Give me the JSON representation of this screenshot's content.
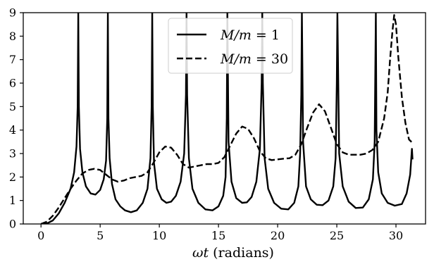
{
  "chart_data": {
    "type": "line",
    "title": "",
    "xlabel": "ωt (radians)",
    "ylabel": "",
    "xlim": [
      -1.5,
      32.5
    ],
    "ylim": [
      0,
      9
    ],
    "xticks": [
      0,
      5,
      10,
      15,
      20,
      25,
      30
    ],
    "yticks": [
      0,
      1,
      2,
      3,
      4,
      5,
      6,
      7,
      8,
      9
    ],
    "grid": false,
    "legend": "top-center",
    "series": [
      {
        "name": "M/m = 1",
        "style": "solid",
        "color": "#000000",
        "x": [
          0,
          0.5,
          1.0,
          1.5,
          2.0,
          2.5,
          2.8,
          3.0,
          3.1,
          3.15,
          3.2,
          3.3,
          3.5,
          3.8,
          4.2,
          4.6,
          5.0,
          5.3,
          5.5,
          5.6,
          5.65,
          5.7,
          5.8,
          6.0,
          6.3,
          6.7,
          7.1,
          7.6,
          8.1,
          8.6,
          9.0,
          9.25,
          9.35,
          9.4,
          9.45,
          9.55,
          9.8,
          10.2,
          10.6,
          11.0,
          11.4,
          11.8,
          12.1,
          12.25,
          12.3,
          12.35,
          12.5,
          12.8,
          13.3,
          13.9,
          14.5,
          15.0,
          15.4,
          15.6,
          15.7,
          15.75,
          15.85,
          16.1,
          16.5,
          17.0,
          17.4,
          17.8,
          18.2,
          18.5,
          18.65,
          18.7,
          18.75,
          18.9,
          19.2,
          19.7,
          20.3,
          20.9,
          21.4,
          21.75,
          21.9,
          22.0,
          22.05,
          22.15,
          22.4,
          22.8,
          23.3,
          23.8,
          24.3,
          24.7,
          24.9,
          25.0,
          25.05,
          25.2,
          25.5,
          26.0,
          26.6,
          27.2,
          27.7,
          28.05,
          28.2,
          28.3,
          28.35,
          28.5,
          28.8,
          29.3,
          29.9,
          30.5,
          30.9,
          31.2,
          31.35,
          31.4
        ],
        "y": [
          0,
          0.02,
          0.15,
          0.45,
          0.9,
          1.5,
          2.2,
          3.3,
          5.0,
          9.0,
          5.0,
          3.2,
          2.2,
          1.6,
          1.3,
          1.25,
          1.45,
          1.9,
          2.7,
          4.5,
          9.0,
          4.5,
          2.8,
          1.7,
          1.05,
          0.75,
          0.58,
          0.5,
          0.58,
          0.9,
          1.5,
          2.8,
          5.0,
          9.0,
          5.0,
          2.6,
          1.5,
          1.05,
          0.9,
          0.95,
          1.2,
          1.8,
          3.0,
          5.5,
          9.0,
          5.5,
          2.8,
          1.5,
          0.9,
          0.62,
          0.58,
          0.75,
          1.2,
          2.0,
          4.5,
          9.0,
          3.5,
          1.8,
          1.1,
          0.9,
          0.92,
          1.15,
          1.8,
          3.2,
          6.0,
          9.0,
          6.0,
          2.8,
          1.5,
          0.9,
          0.65,
          0.62,
          0.9,
          1.6,
          3.0,
          5.5,
          9.0,
          3.5,
          1.6,
          1.05,
          0.82,
          0.8,
          1.0,
          1.6,
          2.8,
          6.0,
          9.0,
          3.0,
          1.6,
          0.95,
          0.68,
          0.7,
          1.05,
          1.9,
          3.5,
          9.0,
          4.0,
          2.2,
          1.3,
          0.9,
          0.78,
          0.85,
          1.3,
          2.1,
          3.2,
          2.75
        ]
      },
      {
        "name": "M/m = 30",
        "style": "dashed",
        "color": "#000000",
        "x": [
          0,
          0.5,
          1.0,
          1.5,
          2.0,
          2.5,
          3.0,
          3.5,
          4.0,
          4.5,
          5.0,
          5.5,
          6.0,
          6.5,
          7.0,
          7.5,
          8.0,
          8.5,
          9.0,
          9.5,
          10.0,
          10.5,
          11.0,
          11.5,
          12.0,
          12.5,
          13.0,
          13.5,
          14.0,
          14.5,
          15.0,
          15.5,
          16.0,
          16.5,
          17.0,
          17.5,
          18.0,
          18.5,
          19.0,
          19.5,
          20.0,
          20.5,
          21.0,
          21.5,
          22.0,
          22.5,
          23.0,
          23.5,
          24.0,
          24.5,
          25.0,
          25.5,
          26.0,
          26.5,
          27.0,
          27.5,
          28.0,
          28.5,
          29.0,
          29.3,
          29.5,
          29.7,
          29.85,
          30.0,
          30.2,
          30.5,
          30.8,
          31.1,
          31.4
        ],
        "y": [
          0,
          0.1,
          0.35,
          0.7,
          1.1,
          1.5,
          1.85,
          2.15,
          2.3,
          2.35,
          2.3,
          2.1,
          1.9,
          1.8,
          1.85,
          1.95,
          2.0,
          2.05,
          2.2,
          2.6,
          3.05,
          3.3,
          3.25,
          2.95,
          2.55,
          2.4,
          2.45,
          2.5,
          2.55,
          2.55,
          2.6,
          2.85,
          3.35,
          3.85,
          4.15,
          4.05,
          3.65,
          3.1,
          2.8,
          2.72,
          2.75,
          2.78,
          2.8,
          2.95,
          3.4,
          4.1,
          4.75,
          5.1,
          4.8,
          4.1,
          3.4,
          3.05,
          2.95,
          2.95,
          2.95,
          3.0,
          3.15,
          3.5,
          4.5,
          5.6,
          7.0,
          8.2,
          8.9,
          8.5,
          7.1,
          5.4,
          4.3,
          3.6,
          3.45
        ]
      }
    ]
  },
  "legend": {
    "entries": [
      {
        "prefix": "M/m",
        "eq": " = ",
        "value": "1"
      },
      {
        "prefix": "M/m",
        "eq": " = ",
        "value": "30"
      }
    ]
  },
  "axis": {
    "xlabel_symbol": "ωt",
    "xlabel_rest": " (radians)"
  }
}
